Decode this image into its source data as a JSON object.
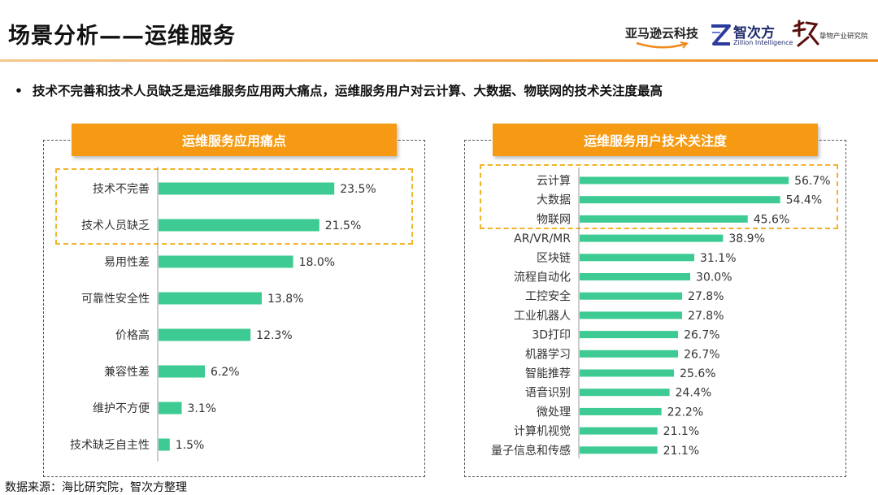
{
  "header": {
    "title": "场景分析——运维服务",
    "logos": {
      "amazon": "亚马逊云科技",
      "zhici_cn": "智次方",
      "zhici_en": "Zillion Intelligence",
      "jingwei_sub": "挚物产业研究院"
    }
  },
  "bullet": "技术不完善和技术人员缺乏是运维服务应用两大痛点，运维服务用户对云计算、大数据、物联网的技术关注度最高",
  "source": "数据来源：海比研究院，智次方整理",
  "colors": {
    "bar": "#3ecb93",
    "header": "#f59a12",
    "highlight": "#f0b429"
  },
  "chart_data": [
    {
      "type": "bar",
      "orientation": "horizontal",
      "title": "运维服务应用痛点",
      "categories": [
        "技术不完善",
        "技术人员缺乏",
        "易用性差",
        "可靠性安全性",
        "价格高",
        "兼容性差",
        "维护不方便",
        "技术缺乏自主性"
      ],
      "values": [
        23.5,
        21.5,
        18.0,
        13.8,
        12.3,
        6.2,
        3.1,
        1.5
      ],
      "labels": [
        "23.5%",
        "21.5%",
        "18.0%",
        "13.8%",
        "12.3%",
        "6.2%",
        "3.1%",
        "1.5%"
      ],
      "highlighted": [
        "技术不完善",
        "技术人员缺乏"
      ],
      "xlim": [
        0,
        25
      ],
      "unit": "%"
    },
    {
      "type": "bar",
      "orientation": "horizontal",
      "title": "运维服务用户技术关注度",
      "categories": [
        "云计算",
        "大数据",
        "物联网",
        "AR/VR/MR",
        "区块链",
        "流程自动化",
        "工控安全",
        "工业机器人",
        "3D打印",
        "机器学习",
        "智能推荐",
        "语音识别",
        "微处理",
        "计算机视觉",
        "量子信息和传感"
      ],
      "values": [
        56.7,
        54.4,
        45.6,
        38.9,
        31.1,
        30.0,
        27.8,
        27.8,
        26.7,
        26.7,
        25.6,
        24.4,
        22.2,
        21.1,
        21.1
      ],
      "labels": [
        "56.7%",
        "54.4%",
        "45.6%",
        "38.9%",
        "31.1%",
        "30.0%",
        "27.8%",
        "27.8%",
        "26.7%",
        "26.7%",
        "25.6%",
        "24.4%",
        "22.2%",
        "21.1%",
        "21.1%"
      ],
      "highlighted": [
        "云计算",
        "大数据",
        "物联网"
      ],
      "xlim": [
        0,
        58
      ],
      "unit": "%"
    }
  ]
}
